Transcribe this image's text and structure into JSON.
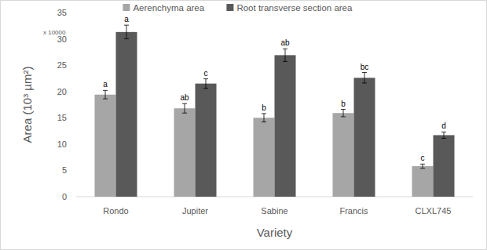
{
  "chart_data": {
    "type": "bar",
    "categories": [
      "Rondo",
      "Jupiter",
      "Sabine",
      "Francis",
      "CLXL745"
    ],
    "series": [
      {
        "name": "Aerenchyma area",
        "color": "#a6a6a6",
        "values": [
          19.4,
          16.8,
          15.0,
          15.9,
          5.8
        ],
        "errors": [
          0.8,
          0.9,
          0.8,
          0.7,
          0.4
        ],
        "letters": [
          "a",
          "ab",
          "b",
          "b",
          "c"
        ]
      },
      {
        "name": "Root transverse section area",
        "color": "#595959",
        "values": [
          31.3,
          21.5,
          26.9,
          22.6,
          11.7
        ],
        "errors": [
          1.3,
          0.9,
          1.2,
          1.0,
          0.6
        ],
        "letters": [
          "a",
          "c",
          "ab",
          "bc",
          "d"
        ]
      }
    ],
    "x_label": "Variety",
    "y_label": "Area (10³ µm²)",
    "annotations": [
      "x 10000"
    ],
    "ylim": [
      0,
      35
    ],
    "yticks": [
      0,
      5,
      10,
      15,
      20,
      25,
      30,
      35
    ],
    "grid": false,
    "legend": "top"
  }
}
